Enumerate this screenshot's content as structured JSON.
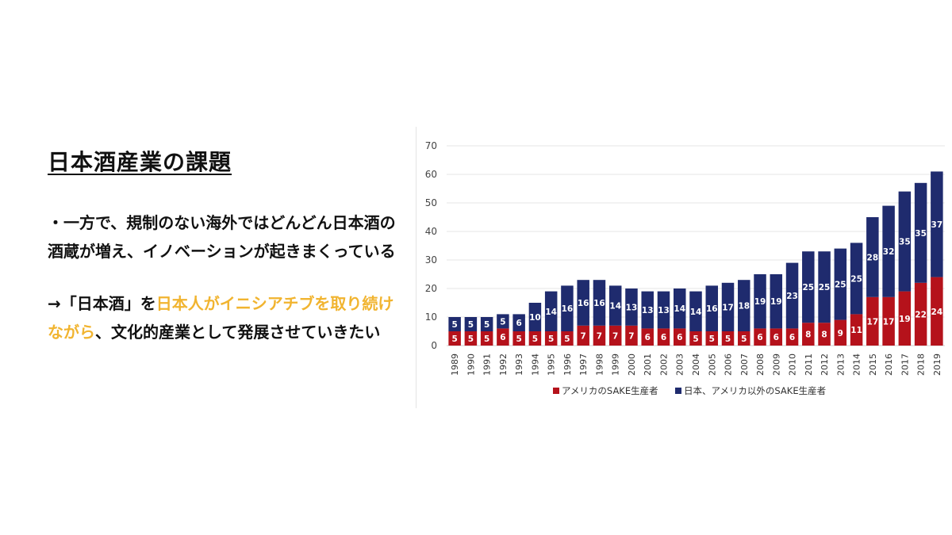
{
  "slide": {
    "heading": "日本酒産業の課題",
    "para1": "・一方で、規制のない海外ではどんどん日本酒の酒蔵が増え、イノベーションが起きまくっている",
    "para2_prefix": "→「日本酒」を",
    "para2_highlight": "日本人がイニシアチブを取り続けながら",
    "para2_suffix": "、文化的産業として発展させていきたい",
    "highlight_color": "#f1b430"
  },
  "chart_data": {
    "type": "bar",
    "stacked": true,
    "categories": [
      "1989",
      "1990",
      "1991",
      "1992",
      "1993",
      "1994",
      "1995",
      "1996",
      "1997",
      "1998",
      "1999",
      "2000",
      "2001",
      "2002",
      "2003",
      "2004",
      "2005",
      "2006",
      "2007",
      "2008",
      "2009",
      "2010",
      "2011",
      "2012",
      "2013",
      "2014",
      "2015",
      "2016",
      "2017",
      "2018",
      "2019"
    ],
    "series": [
      {
        "name": "アメリカのSAKE生産者",
        "color": "#b5121b",
        "values": [
          5,
          5,
          5,
          6,
          5,
          5,
          5,
          5,
          7,
          7,
          7,
          7,
          6,
          6,
          6,
          5,
          5,
          5,
          5,
          6,
          6,
          6,
          8,
          8,
          9,
          11,
          17,
          17,
          19,
          22,
          24
        ]
      },
      {
        "name": "日本、アメリカ以外のSAKE生産者",
        "color": "#1f2b6e",
        "values": [
          5,
          5,
          5,
          5,
          6,
          10,
          14,
          16,
          16,
          16,
          14,
          13,
          13,
          13,
          14,
          14,
          16,
          17,
          18,
          19,
          19,
          23,
          25,
          25,
          25,
          25,
          28,
          32,
          35,
          35,
          37
        ]
      }
    ],
    "ylim": [
      0,
      70
    ],
    "yticks": [
      "0",
      "10",
      "20",
      "30",
      "40",
      "50",
      "60",
      "70"
    ],
    "grid": true,
    "legend_position": "bottom"
  }
}
